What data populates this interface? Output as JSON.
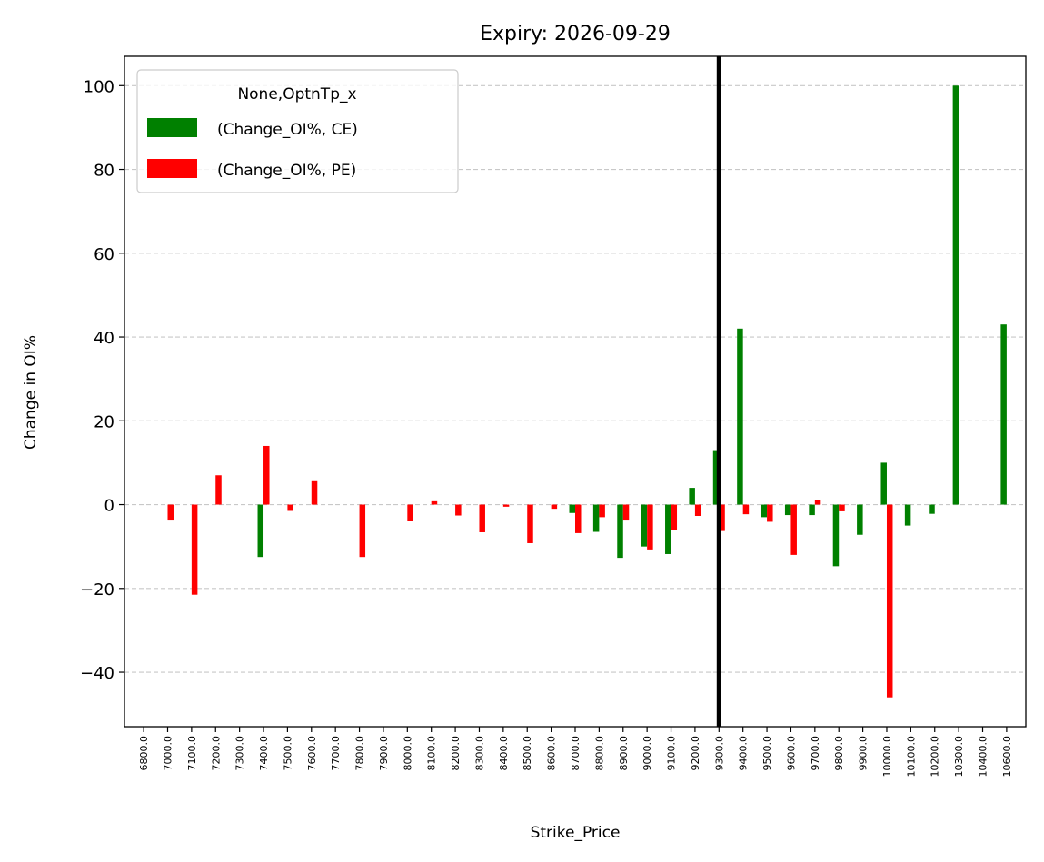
{
  "chart_data": {
    "type": "bar",
    "title": "Expiry: 2026-09-29",
    "xlabel": "Strike_Price",
    "ylabel": "Change in OI%",
    "ylim": [
      -53,
      107
    ],
    "yticks": [
      -40,
      -20,
      0,
      20,
      40,
      60,
      80,
      100
    ],
    "ytick_labels": [
      "−40",
      "−20",
      "0",
      "20",
      "40",
      "60",
      "80",
      "100"
    ],
    "grid": "y-dashed",
    "legend_title": "None,OptnTp_x",
    "legend_position": "top-left",
    "spot_line_category": "9300.0",
    "categories": [
      "6800.0",
      "7000.0",
      "7100.0",
      "7200.0",
      "7300.0",
      "7400.0",
      "7500.0",
      "7600.0",
      "7700.0",
      "7800.0",
      "7900.0",
      "8000.0",
      "8100.0",
      "8200.0",
      "8300.0",
      "8400.0",
      "8500.0",
      "8600.0",
      "8700.0",
      "8800.0",
      "8900.0",
      "9000.0",
      "9100.0",
      "9200.0",
      "9300.0",
      "9400.0",
      "9500.0",
      "9600.0",
      "9700.0",
      "9800.0",
      "9900.0",
      "10000.0",
      "10100.0",
      "10200.0",
      "10300.0",
      "10400.0",
      "10600.0"
    ],
    "series": [
      {
        "name": "(Change_OI%, CE)",
        "color": "#008000",
        "values": [
          0,
          0,
          0,
          0,
          0,
          -12.5,
          0,
          0,
          0,
          0,
          0,
          0,
          0,
          0,
          0,
          0,
          0,
          0,
          -2,
          -6.5,
          -12.7,
          -10,
          -11.8,
          4,
          13,
          42,
          -3,
          -2.5,
          -2.5,
          -14.7,
          -7.2,
          10,
          -5,
          -2.2,
          100,
          0,
          43
        ]
      },
      {
        "name": "(Change_OI%, PE)",
        "color": "#ff0000",
        "values": [
          0,
          -3.8,
          -21.5,
          7,
          0,
          14,
          -1.5,
          5.8,
          0,
          -12.5,
          0,
          -4,
          0.8,
          -2.6,
          -6.6,
          -0.5,
          -9.2,
          -1,
          -6.8,
          -3,
          -3.8,
          -10.7,
          -6,
          -2.7,
          -6.3,
          -2.3,
          -4.1,
          -12,
          1.2,
          -1.6,
          0,
          -46,
          0,
          0,
          0,
          0,
          0
        ]
      }
    ]
  }
}
